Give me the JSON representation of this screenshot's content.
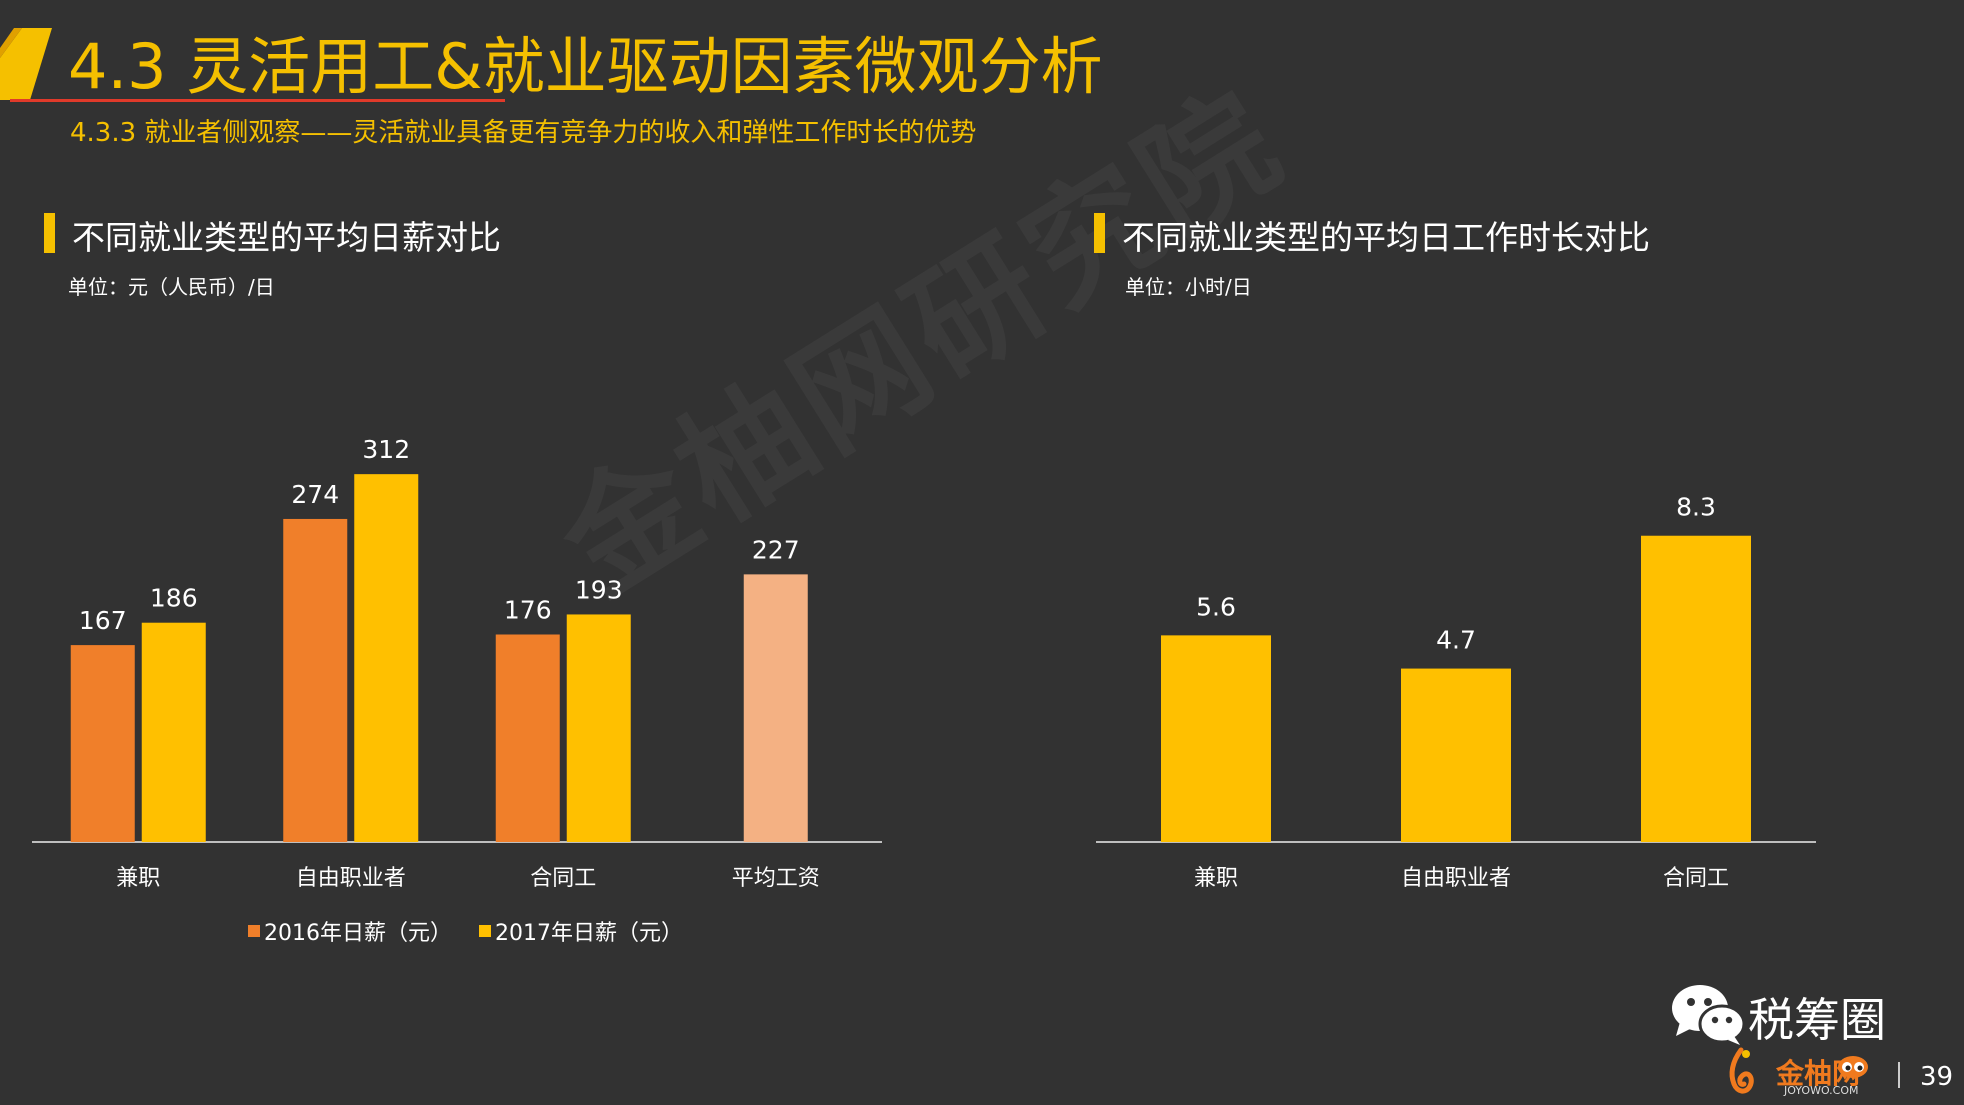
{
  "header": {
    "title": "4.3 灵活用工&就业驱动因素微观分析",
    "subtitle": "4.3.3 就业者侧观察——灵活就业具备更有竞争力的收入和弹性工作时长的优势",
    "accent_color": "#f5c000",
    "underline_color": "#e03a2a"
  },
  "watermark": "金柚网研究院",
  "left_chart": {
    "section_title": "不同就业类型的平均日薪对比",
    "unit": "单位：元（人民币）/日"
  },
  "right_chart": {
    "section_title": "不同就业类型的平均日工作时长对比",
    "unit": "单位：小时/日"
  },
  "chart_data": [
    {
      "type": "bar",
      "title": "不同就业类型的平均日薪对比",
      "categories": [
        "兼职",
        "自由职业者",
        "合同工",
        "平均工资"
      ],
      "series": [
        {
          "name": "2016年日薪（元）",
          "values": [
            167,
            274,
            176,
            null
          ],
          "color": "#f07f2a"
        },
        {
          "name": "2017年日薪（元）",
          "values": [
            186,
            312,
            193,
            227
          ],
          "color": "#ffc000"
        }
      ],
      "highlight_color": "#f4b183",
      "ylim": [
        0,
        330
      ],
      "grid": false,
      "legend_position": "bottom"
    },
    {
      "type": "bar",
      "title": "不同就业类型的平均日工作时长对比",
      "categories": [
        "兼职",
        "自由职业者",
        "合同工"
      ],
      "values": [
        5.6,
        4.7,
        8.3
      ],
      "color": "#ffc000",
      "ylim": [
        0,
        10
      ],
      "grid": false
    }
  ],
  "footer": {
    "brand": "税筹圈",
    "logo_text": "金柚网",
    "logo_url": "JOYOWO.COM",
    "page_number": "39",
    "icons": [
      "wechat-icon",
      "joyowo-logo-icon"
    ]
  }
}
